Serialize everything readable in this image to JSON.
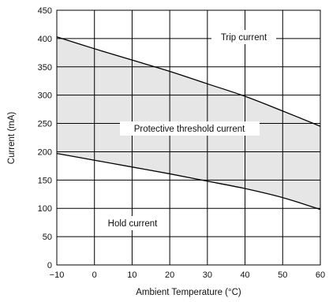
{
  "chart_data": {
    "type": "line",
    "title": "",
    "xlabel": "Ambient Temperature (°C)",
    "ylabel": "Current (mA)",
    "xlim": [
      -10,
      60
    ],
    "ylim": [
      0,
      450
    ],
    "x_ticks": [
      "−10",
      "0",
      "10",
      "20",
      "30",
      "40",
      "50",
      "60"
    ],
    "y_ticks": [
      "0",
      "50",
      "100",
      "150",
      "200",
      "250",
      "300",
      "350",
      "400",
      "450"
    ],
    "grid": true,
    "series": [
      {
        "name": "Trip current",
        "x": [
          -10,
          0,
          10,
          20,
          30,
          40,
          50,
          60
        ],
        "y": [
          403,
          382,
          362,
          342,
          320,
          298,
          272,
          245
        ]
      },
      {
        "name": "Hold current",
        "x": [
          -10,
          0,
          10,
          20,
          30,
          40,
          50,
          60
        ],
        "y": [
          197,
          185,
          173,
          161,
          148,
          135,
          119,
          98
        ]
      }
    ],
    "shaded_region": {
      "label": "Protective threshold current",
      "between": [
        "Trip current",
        "Hold current"
      ],
      "color": "#e6e6e6"
    },
    "annotations": {
      "trip_label": "Trip current",
      "hold_label": "Hold current",
      "region_label": "Protective threshold current"
    }
  }
}
